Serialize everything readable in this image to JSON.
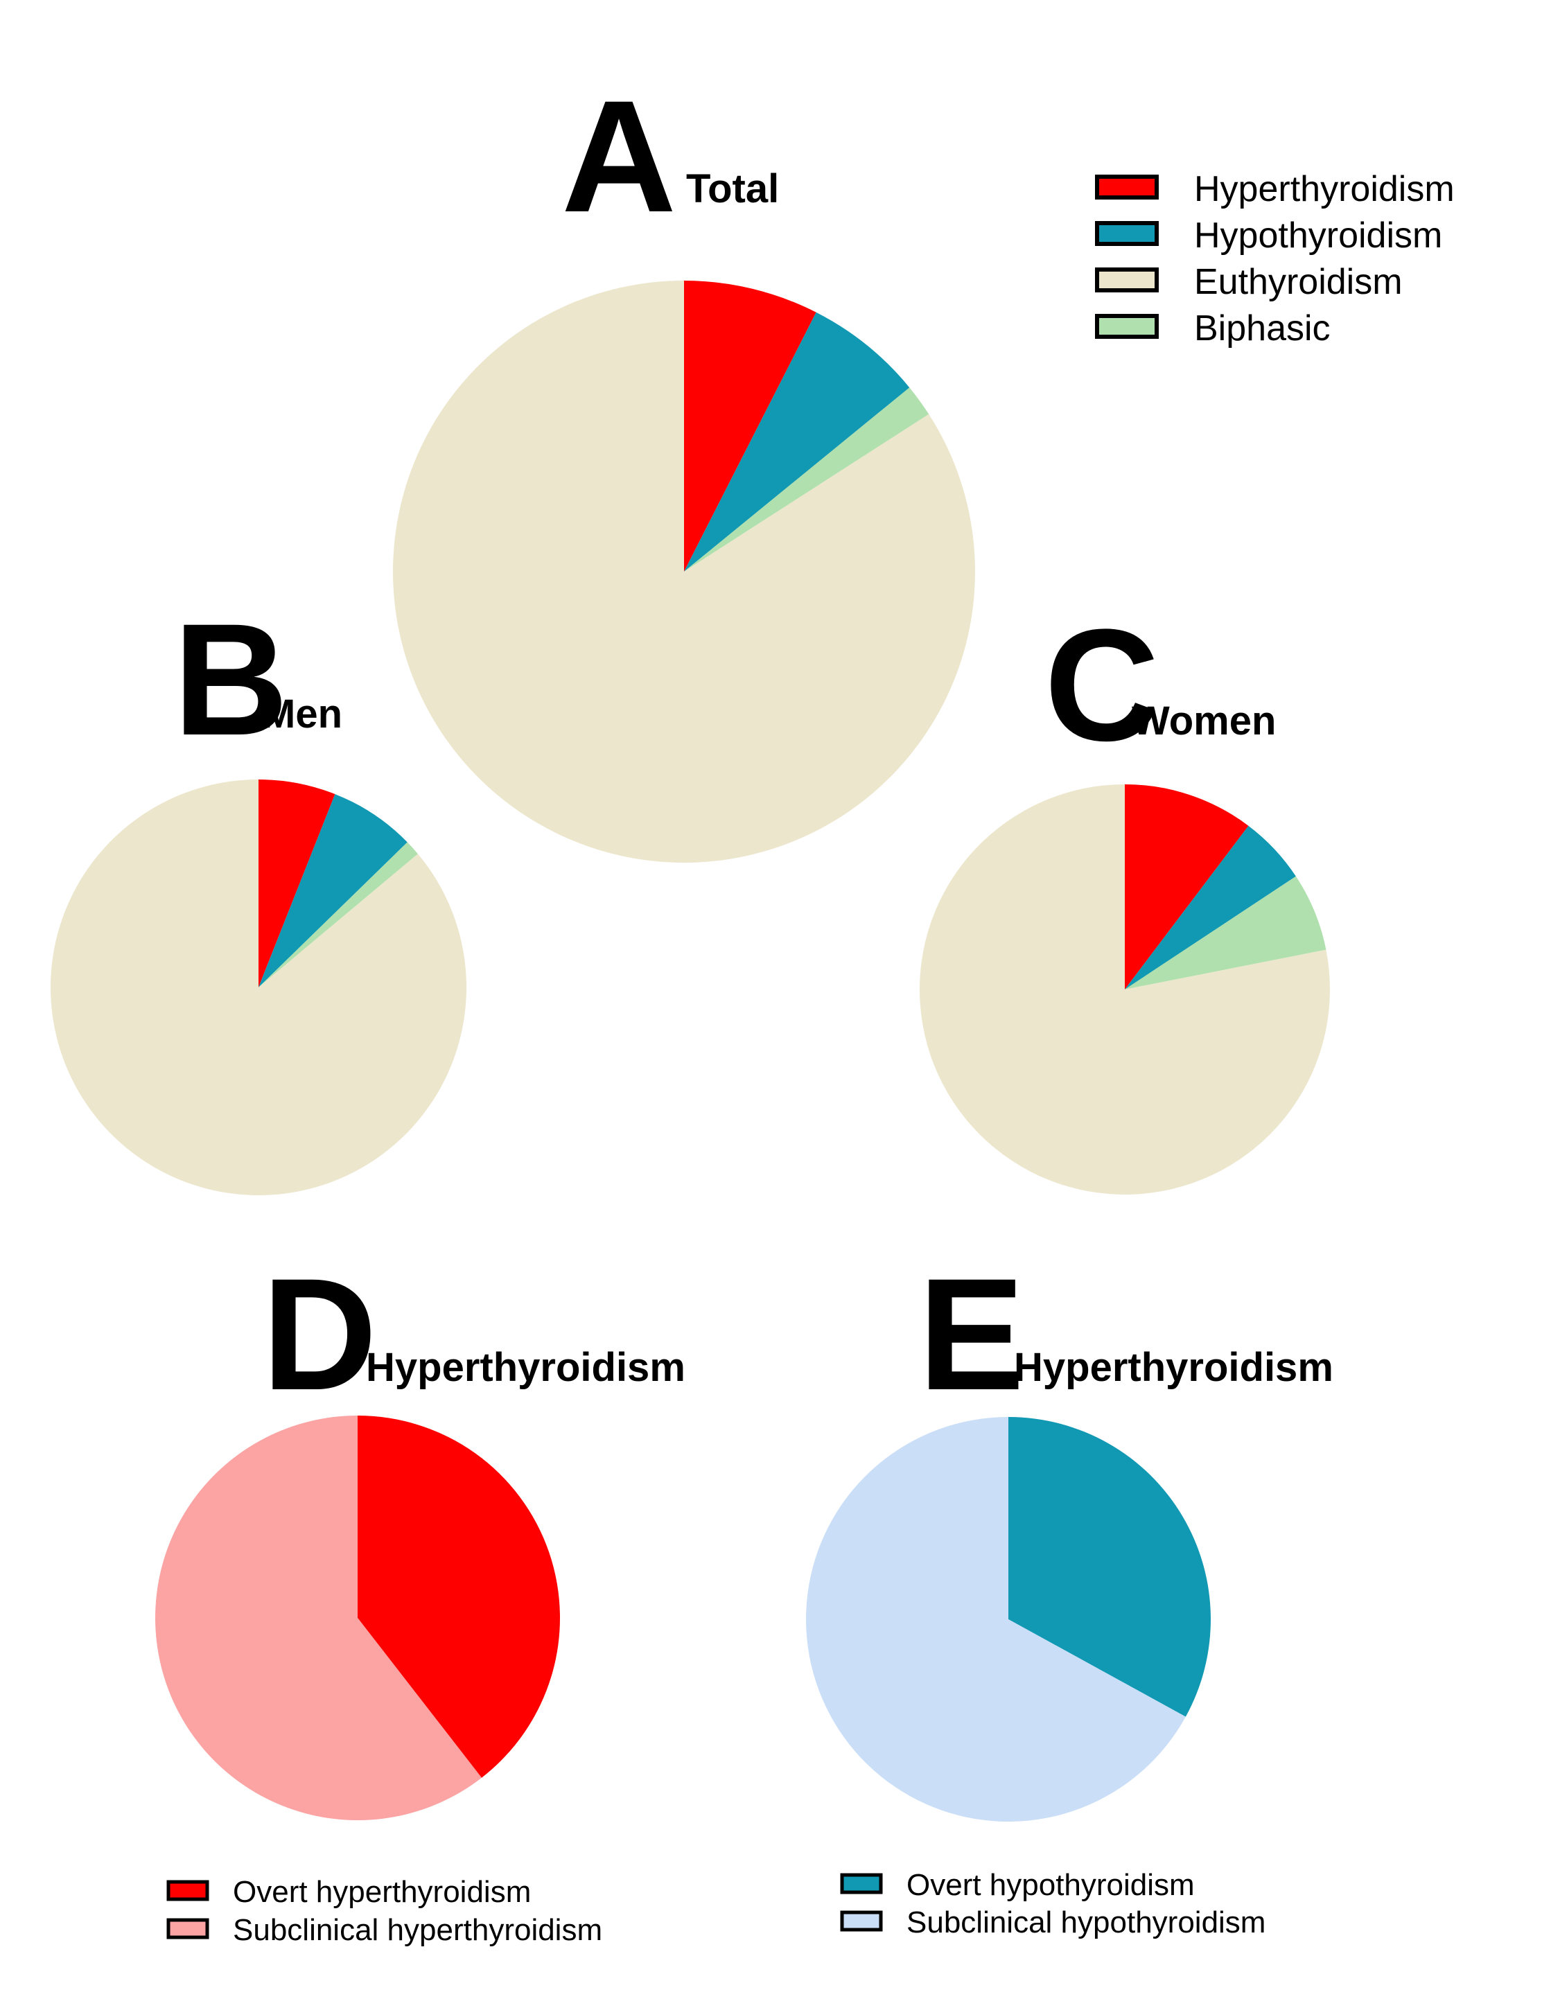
{
  "colors": {
    "Hyperthyroidism": "#ff0000",
    "Hypothyroidism": "#1199b4",
    "Euthyroidism": "#ece6cc",
    "Biphasic": "#b0e0ad",
    "Overt hyperthyroidism": "#ff0000",
    "Subclinical hyperthyroidism": "#fca3a3",
    "Overt hypothyroidism": "#1199b4",
    "Subclinical hypothyroidism": "#cadff7"
  },
  "legends": {
    "main": [
      "Hyperthyroidism",
      "Hypothyroidism",
      "Euthyroidism",
      "Biphasic"
    ],
    "hyper": [
      "Overt hyperthyroidism",
      "Subclinical hyperthyroidism"
    ],
    "hypo": [
      "Overt hypothyroidism",
      "Subclinical hypothyroidism"
    ]
  },
  "chart_data": [
    {
      "id": "A",
      "type": "pie",
      "letter": "A",
      "title": "Total",
      "categories": [
        "Hyperthyroidism",
        "Hypothyroidism",
        "Biphasic",
        "Euthyroidism"
      ],
      "values": [
        7.5,
        6.6,
        1.8,
        84.1
      ],
      "start": "12 o'clock",
      "direction": "clockwise"
    },
    {
      "id": "B",
      "type": "pie",
      "letter": "B",
      "title": "Men",
      "categories": [
        "Hyperthyroidism",
        "Hypothyroidism",
        "Biphasic",
        "Euthyroidism"
      ],
      "values": [
        6.0,
        6.7,
        1.2,
        86.1
      ],
      "start": "12 o'clock",
      "direction": "clockwise"
    },
    {
      "id": "C",
      "type": "pie",
      "letter": "C",
      "title": "Women",
      "categories": [
        "Hyperthyroidism",
        "Hypothyroidism",
        "Biphasic",
        "Euthyroidism"
      ],
      "values": [
        10.3,
        5.4,
        6.2,
        78.1
      ],
      "start": "12 o'clock",
      "direction": "clockwise"
    },
    {
      "id": "D",
      "type": "pie",
      "letter": "D",
      "title": "Hyperthyroidism",
      "categories": [
        "Overt hyperthyroidism",
        "Subclinical hyperthyroidism"
      ],
      "values": [
        39.5,
        60.5
      ],
      "start": "12 o'clock",
      "direction": "clockwise"
    },
    {
      "id": "E",
      "type": "pie",
      "letter": "E",
      "title": "Hyperthyroidism",
      "categories": [
        "Overt hypothyroidism",
        "Subclinical hypothyroidism"
      ],
      "values": [
        33.0,
        67.0
      ],
      "start": "12 o'clock",
      "direction": "clockwise"
    }
  ]
}
